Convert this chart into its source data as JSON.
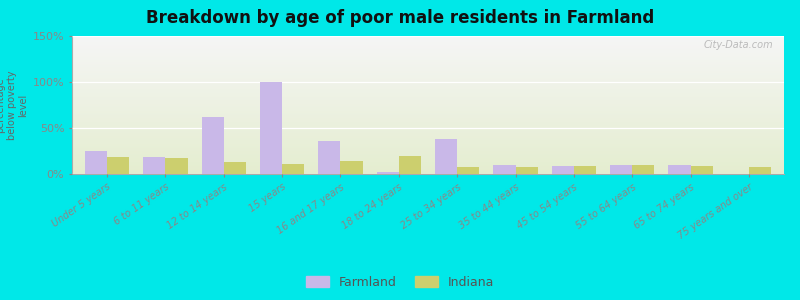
{
  "title": "Breakdown by age of poor male residents in Farmland",
  "ylabel": "percentage\nbelow poverty\nlevel",
  "categories": [
    "Under 5 years",
    "6 to 11 years",
    "12 to 14 years",
    "15 years",
    "16 and 17 years",
    "18 to 24 years",
    "25 to 34 years",
    "35 to 44 years",
    "45 to 54 years",
    "55 to 64 years",
    "65 to 74 years",
    "75 years and over"
  ],
  "farmland_values": [
    25,
    18,
    62,
    100,
    36,
    2,
    38,
    10,
    9,
    10,
    10,
    0
  ],
  "indiana_values": [
    18,
    17,
    13,
    11,
    14,
    20,
    8,
    8,
    9,
    10,
    9,
    8
  ],
  "farmland_color": "#c9b8e8",
  "indiana_color": "#cccf6e",
  "ylim": [
    0,
    150
  ],
  "yticks": [
    0,
    50,
    100,
    150
  ],
  "ytick_labels": [
    "0%",
    "50%",
    "100%",
    "150%"
  ],
  "bg_top_color": "#f5f5f5",
  "bg_bottom_color": "#e4edcf",
  "outer_bg_color": "#00e8e8",
  "bar_width": 0.38,
  "legend_farmland": "Farmland",
  "legend_indiana": "Indiana",
  "watermark": "City-Data.com"
}
